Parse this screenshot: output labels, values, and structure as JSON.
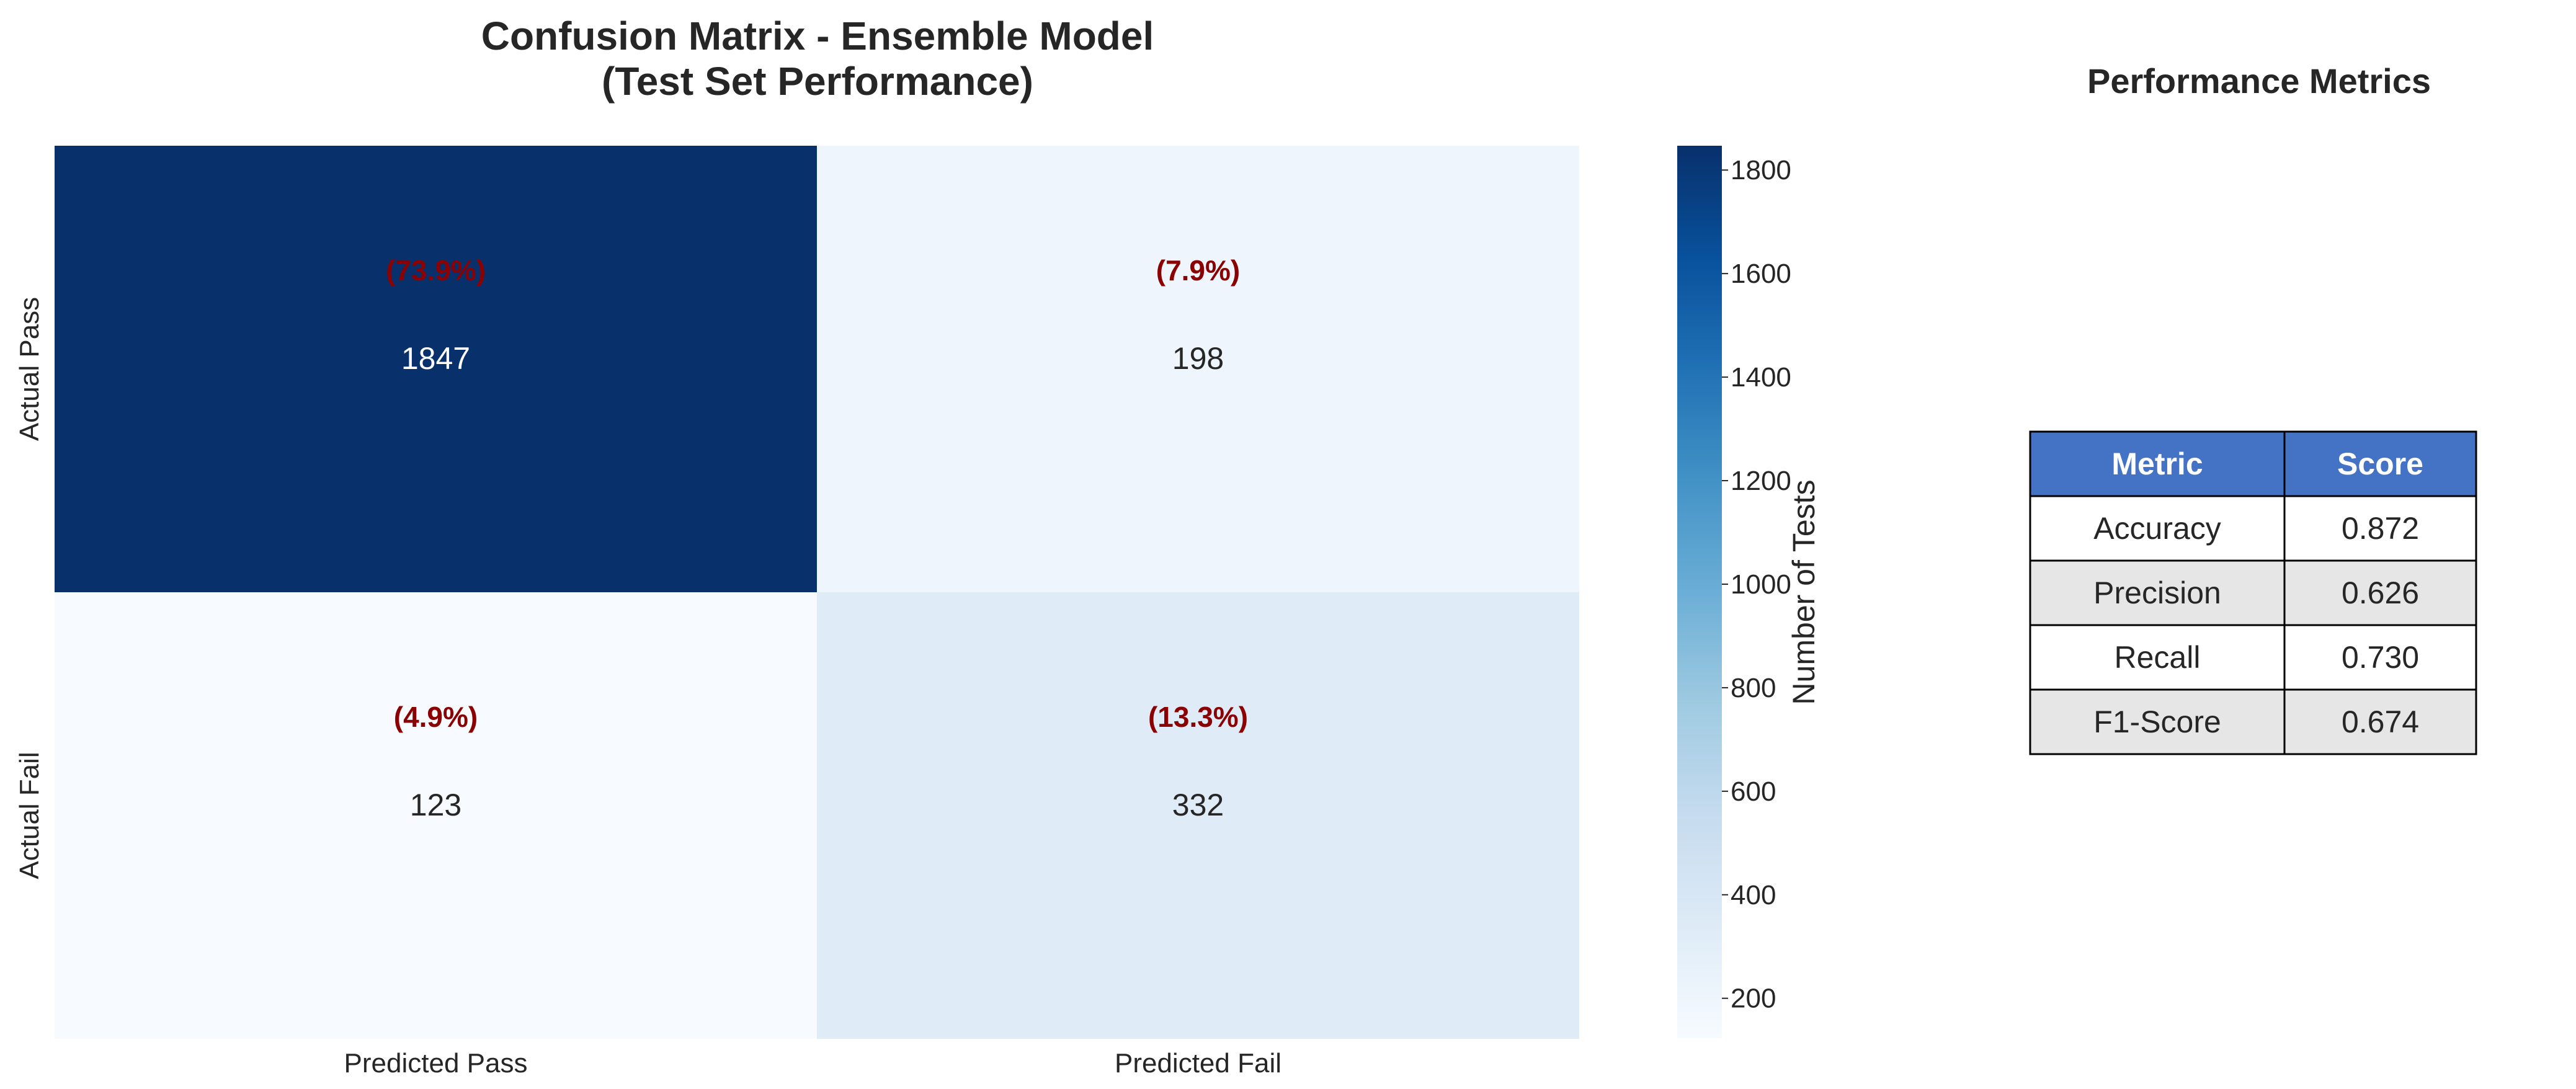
{
  "chart_data": [
    {
      "type": "heatmap",
      "title_lines": [
        "Confusion Matrix - Ensemble Model",
        "(Test Set Performance)"
      ],
      "x_categories": [
        "Predicted Pass",
        "Predicted Fail"
      ],
      "y_categories": [
        "Actual Pass",
        "Actual Fail"
      ],
      "values": [
        [
          1847,
          198
        ],
        [
          123,
          332
        ]
      ],
      "percent_labels": [
        [
          "(73.9%)",
          "(7.9%)"
        ],
        [
          "(4.9%)",
          "(13.3%)"
        ]
      ],
      "colormap": "Blues",
      "vmin": 123,
      "vmax": 1847,
      "colorbar_label": "Number of Tests",
      "colorbar_ticks": [
        200,
        400,
        600,
        800,
        1000,
        1200,
        1400,
        1600,
        1800
      ],
      "percent_color": "#8b0000",
      "grid": false
    },
    {
      "type": "table",
      "title": "Performance Metrics",
      "columns": [
        "Metric",
        "Score"
      ],
      "rows": [
        [
          "Accuracy",
          "0.872"
        ],
        [
          "Precision",
          "0.626"
        ],
        [
          "Recall",
          "0.730"
        ],
        [
          "F1-Score",
          "0.674"
        ]
      ],
      "header_color": "#4472c4",
      "stripe_color": "#e6e6e6"
    }
  ]
}
